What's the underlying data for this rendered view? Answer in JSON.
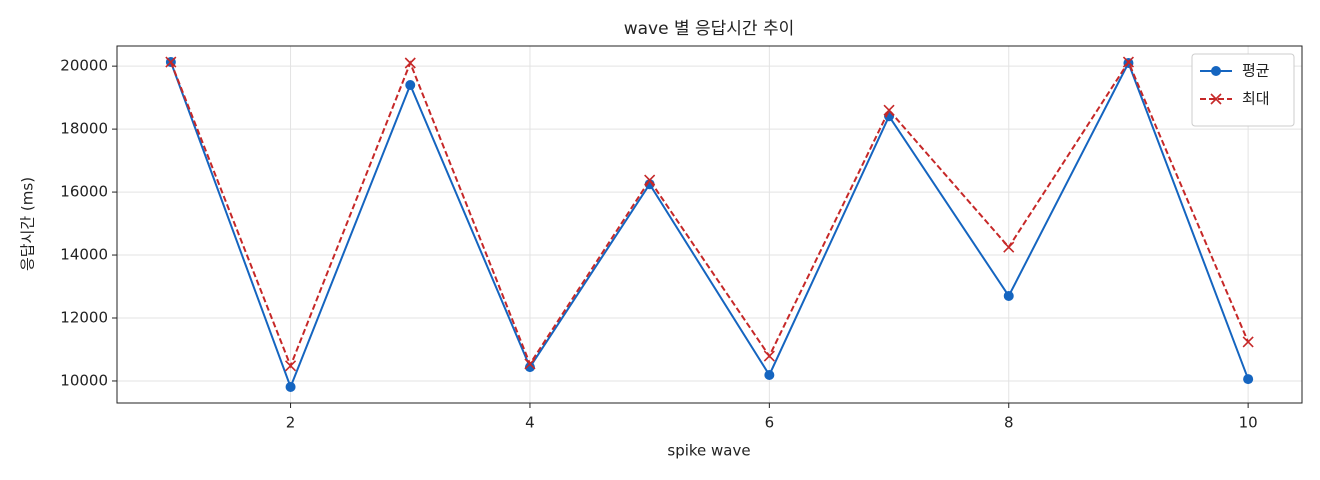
{
  "chart_data": {
    "type": "line",
    "title": "wave 별 응답시간 추이",
    "x_label": "spike wave",
    "y_label": "응답시간 (ms)",
    "x": [
      1,
      2,
      3,
      4,
      5,
      6,
      7,
      8,
      9,
      10
    ],
    "series": [
      {
        "name": "평균",
        "color": "#1565c0",
        "marker": "o",
        "linestyle": "solid",
        "values": [
          20130,
          9810,
          19400,
          10440,
          16250,
          10190,
          18410,
          12700,
          20100,
          10060
        ]
      },
      {
        "name": "최대",
        "color": "#c62828",
        "marker": "x",
        "linestyle": "dashed",
        "values": [
          20130,
          10480,
          20100,
          10540,
          16380,
          10790,
          18600,
          14250,
          20130,
          11240
        ]
      }
    ],
    "xlim": [
      0.55,
      10.45
    ],
    "ylim": [
      9300,
      20640
    ],
    "xticks": [
      2,
      4,
      6,
      8,
      10
    ],
    "yticks": [
      10000,
      12000,
      14000,
      16000,
      18000,
      20000
    ],
    "grid": true,
    "legend": "upper right"
  }
}
